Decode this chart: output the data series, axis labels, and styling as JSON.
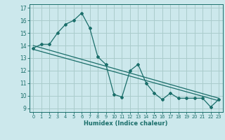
{
  "xlabel": "Humidex (Indice chaleur)",
  "bg_color": "#cce8ec",
  "grid_color": "#aacccc",
  "line_color": "#1a6e6a",
  "xlim": [
    -0.5,
    23.5
  ],
  "ylim": [
    8.7,
    17.3
  ],
  "xticks": [
    0,
    1,
    2,
    3,
    4,
    5,
    6,
    7,
    8,
    9,
    10,
    11,
    12,
    13,
    14,
    15,
    16,
    17,
    18,
    19,
    20,
    21,
    22,
    23
  ],
  "yticks": [
    9,
    10,
    11,
    12,
    13,
    14,
    15,
    16,
    17
  ],
  "line1_x": [
    0,
    1,
    2,
    3,
    4,
    5,
    6,
    7,
    8,
    9,
    10,
    11,
    12,
    13,
    14,
    15,
    16,
    17,
    18,
    19,
    20,
    21,
    22,
    23
  ],
  "line1_y": [
    13.8,
    14.1,
    14.1,
    15.0,
    15.7,
    16.0,
    16.6,
    15.4,
    13.1,
    12.5,
    10.1,
    9.9,
    12.0,
    12.5,
    11.0,
    10.2,
    9.7,
    10.2,
    9.8,
    9.8,
    9.8,
    9.8,
    9.1,
    9.7
  ],
  "line2_x": [
    0,
    23
  ],
  "line2_y": [
    14.0,
    9.8
  ],
  "line3_x": [
    0,
    23
  ],
  "line3_y": [
    13.7,
    9.6
  ]
}
